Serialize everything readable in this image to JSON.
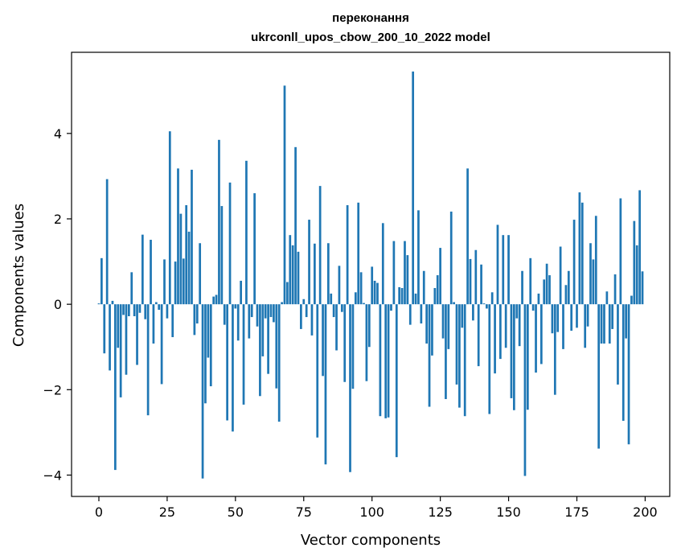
{
  "chart_data": {
    "type": "bar",
    "title": "переконання",
    "subtitle": "ukrconll_upos_cbow_200_10_2022 model",
    "xlabel": "Vector components",
    "ylabel": "Components values",
    "xlim": [
      -10,
      209
    ],
    "ylim": [
      -4.5,
      5.9
    ],
    "xticks": [
      0,
      25,
      50,
      75,
      100,
      125,
      150,
      175,
      200
    ],
    "yticks": [
      -4,
      -2,
      0,
      2,
      4
    ],
    "xtick_labels": [
      "0",
      "25",
      "50",
      "75",
      "100",
      "125",
      "150",
      "175",
      "200"
    ],
    "ytick_labels": [
      "−4",
      "−2",
      "0",
      "2",
      "4"
    ],
    "bar_color": "#1f77b4",
    "grid": false,
    "values": [
      0.02,
      1.08,
      -1.15,
      2.93,
      -1.55,
      0.08,
      -3.88,
      -1.02,
      -2.18,
      -0.25,
      -1.65,
      -0.28,
      0.75,
      -0.28,
      -1.42,
      -0.2,
      1.63,
      -0.35,
      -2.6,
      1.51,
      -0.92,
      0.05,
      -0.13,
      -1.87,
      1.05,
      -0.33,
      4.05,
      -0.77,
      1.0,
      3.18,
      2.12,
      1.07,
      2.32,
      1.7,
      3.15,
      -0.72,
      -0.45,
      1.43,
      -4.08,
      -2.32,
      -1.25,
      -1.92,
      0.18,
      0.22,
      3.85,
      2.3,
      -0.48,
      -2.72,
      2.85,
      -2.98,
      -0.1,
      -0.85,
      0.55,
      -2.35,
      3.36,
      -0.8,
      -0.3,
      2.6,
      -0.52,
      -2.15,
      -1.22,
      -0.33,
      -1.63,
      -0.3,
      -0.42,
      -1.97,
      -2.75,
      0.05,
      5.12,
      0.52,
      1.62,
      1.38,
      3.68,
      1.23,
      -0.58,
      0.12,
      -0.3,
      1.98,
      -0.73,
      1.42,
      -3.12,
      2.77,
      -1.68,
      -3.75,
      1.43,
      0.25,
      -0.3,
      -1.08,
      0.9,
      -0.18,
      -1.82,
      2.32,
      -3.93,
      -1.98,
      0.28,
      2.38,
      0.75,
      0.03,
      -1.8,
      -1.0,
      0.88,
      0.55,
      0.5,
      -2.62,
      1.9,
      -2.67,
      -2.65,
      -0.15,
      1.48,
      -3.58,
      0.4,
      0.38,
      1.48,
      1.15,
      -0.48,
      5.45,
      0.25,
      2.2,
      -0.45,
      0.78,
      -0.92,
      -2.4,
      -1.2,
      0.38,
      0.68,
      1.32,
      -0.8,
      -2.22,
      -1.05,
      2.17,
      0.05,
      -1.88,
      -2.42,
      -0.55,
      -2.62,
      3.18,
      1.06,
      -0.38,
      1.27,
      -1.45,
      0.93,
      0.02,
      -0.1,
      -2.57,
      0.28,
      -1.62,
      1.86,
      -1.28,
      1.62,
      -1.02,
      1.62,
      -2.2,
      -2.48,
      -0.33,
      -0.98,
      0.78,
      -4.02,
      -2.47,
      1.08,
      -0.15,
      -1.6,
      0.25,
      -1.4,
      0.58,
      0.95,
      0.68,
      -0.68,
      -2.12,
      -0.65,
      1.35,
      -1.05,
      0.45,
      0.78,
      -0.62,
      1.98,
      -0.55,
      2.62,
      2.38,
      -1.02,
      -0.52,
      1.43,
      1.05,
      2.07,
      -3.38,
      -0.92,
      -0.92,
      0.3,
      -0.92,
      -0.58,
      0.7,
      -1.88,
      2.48,
      -2.73,
      -0.8,
      -3.28,
      0.2,
      1.95,
      1.38,
      2.67,
      0.77
    ]
  }
}
